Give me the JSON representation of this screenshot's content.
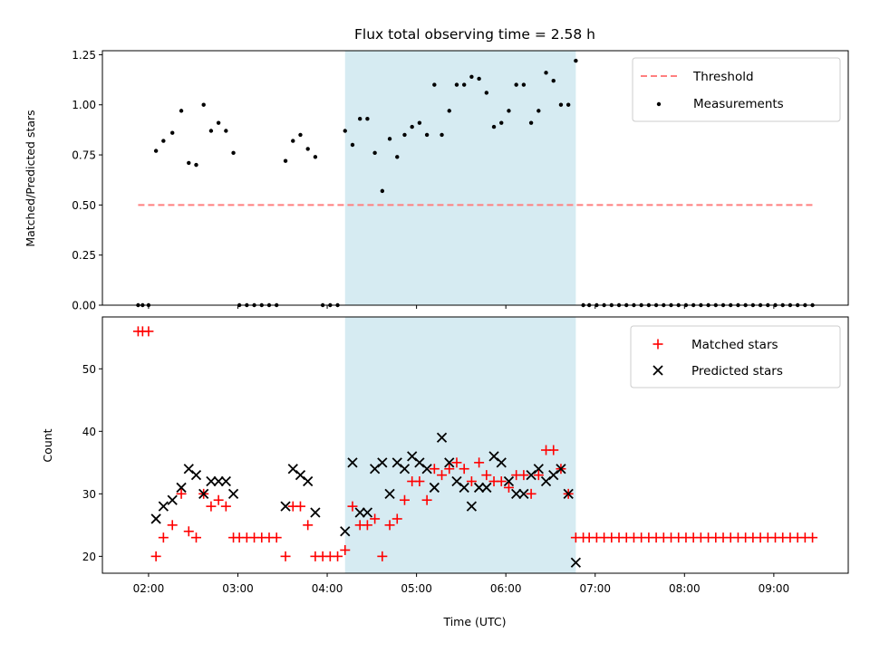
{
  "chart_data": {
    "title": "Flux total observing time = 2.58 h",
    "xlabel": "Time (UTC)",
    "x_tick_labels": [
      "02:00",
      "03:00",
      "04:00",
      "05:00",
      "06:00",
      "07:00",
      "08:00",
      "09:00"
    ],
    "xlim": [
      "01:29",
      "09:50"
    ],
    "observing_window": [
      "04:12",
      "06:47"
    ],
    "colors": {
      "threshold": "#ff7f7f",
      "measurements": "#000000",
      "matched": "#ff0000",
      "predicted": "#000000",
      "window": "#add8e6"
    },
    "panels": [
      {
        "type": "scatter",
        "ylabel": "Matched/Predicted stars",
        "ylim": [
          0,
          1.27
        ],
        "yticks": [
          0,
          0.25,
          0.5,
          0.75,
          1.0,
          1.25
        ],
        "ytick_labels": [
          "0.00",
          "0.25",
          "0.50",
          "0.75",
          "1.00",
          "1.25"
        ],
        "legend_position": "top-right",
        "threshold": {
          "name": "Threshold",
          "value": 0.5,
          "x_range": [
            "01:53",
            "09:27"
          ]
        },
        "series": [
          {
            "name": "Measurements",
            "marker": "dot",
            "points": [
              [
                "01:53",
                0
              ],
              [
                "01:56",
                0
              ],
              [
                "02:00",
                0
              ],
              [
                "02:05",
                0.77
              ],
              [
                "02:10",
                0.82
              ],
              [
                "02:16",
                0.86
              ],
              [
                "02:22",
                0.97
              ],
              [
                "02:27",
                0.71
              ],
              [
                "02:32",
                0.7
              ],
              [
                "02:37",
                1.0
              ],
              [
                "02:42",
                0.87
              ],
              [
                "02:47",
                0.91
              ],
              [
                "02:52",
                0.87
              ],
              [
                "02:57",
                0.76
              ],
              [
                "03:01",
                0
              ],
              [
                "03:06",
                0
              ],
              [
                "03:11",
                0
              ],
              [
                "03:16",
                0
              ],
              [
                "03:21",
                0
              ],
              [
                "03:26",
                0
              ],
              [
                "03:32",
                0.72
              ],
              [
                "03:37",
                0.82
              ],
              [
                "03:42",
                0.85
              ],
              [
                "03:47",
                0.78
              ],
              [
                "03:52",
                0.74
              ],
              [
                "03:57",
                0
              ],
              [
                "04:02",
                0
              ],
              [
                "04:07",
                0
              ],
              [
                "04:12",
                0.87
              ],
              [
                "04:17",
                0.8
              ],
              [
                "04:22",
                0.93
              ],
              [
                "04:27",
                0.93
              ],
              [
                "04:32",
                0.76
              ],
              [
                "04:37",
                0.57
              ],
              [
                "04:42",
                0.83
              ],
              [
                "04:47",
                0.74
              ],
              [
                "04:52",
                0.85
              ],
              [
                "04:57",
                0.89
              ],
              [
                "05:02",
                0.91
              ],
              [
                "05:07",
                0.85
              ],
              [
                "05:12",
                1.1
              ],
              [
                "05:17",
                0.85
              ],
              [
                "05:22",
                0.97
              ],
              [
                "05:27",
                1.1
              ],
              [
                "05:32",
                1.1
              ],
              [
                "05:37",
                1.14
              ],
              [
                "05:42",
                1.13
              ],
              [
                "05:47",
                1.06
              ],
              [
                "05:52",
                0.89
              ],
              [
                "05:57",
                0.91
              ],
              [
                "06:02",
                0.97
              ],
              [
                "06:07",
                1.1
              ],
              [
                "06:12",
                1.1
              ],
              [
                "06:17",
                0.91
              ],
              [
                "06:22",
                0.97
              ],
              [
                "06:27",
                1.16
              ],
              [
                "06:32",
                1.12
              ],
              [
                "06:37",
                1.0
              ],
              [
                "06:42",
                1.0
              ],
              [
                "06:47",
                1.22
              ],
              [
                "06:52",
                0
              ],
              [
                "06:56",
                0
              ],
              [
                "07:01",
                0
              ],
              [
                "07:06",
                0
              ],
              [
                "07:11",
                0
              ],
              [
                "07:16",
                0
              ],
              [
                "07:21",
                0
              ],
              [
                "07:26",
                0
              ],
              [
                "07:31",
                0
              ],
              [
                "07:36",
                0
              ],
              [
                "07:41",
                0
              ],
              [
                "07:46",
                0
              ],
              [
                "07:51",
                0
              ],
              [
                "07:56",
                0
              ],
              [
                "08:01",
                0
              ],
              [
                "08:06",
                0
              ],
              [
                "08:11",
                0
              ],
              [
                "08:16",
                0
              ],
              [
                "08:21",
                0
              ],
              [
                "08:26",
                0
              ],
              [
                "08:31",
                0
              ],
              [
                "08:36",
                0
              ],
              [
                "08:41",
                0
              ],
              [
                "08:46",
                0
              ],
              [
                "08:51",
                0
              ],
              [
                "08:56",
                0
              ],
              [
                "09:01",
                0
              ],
              [
                "09:06",
                0
              ],
              [
                "09:11",
                0
              ],
              [
                "09:16",
                0
              ],
              [
                "09:21",
                0
              ],
              [
                "09:26",
                0
              ]
            ]
          }
        ]
      },
      {
        "type": "scatter",
        "ylabel": "Count",
        "ylim": [
          17.3,
          58.3
        ],
        "yticks": [
          20,
          30,
          40,
          50
        ],
        "ytick_labels": [
          "20",
          "30",
          "40",
          "50"
        ],
        "legend_position": "top-right",
        "series": [
          {
            "name": "Matched stars",
            "marker": "plus",
            "points": [
              [
                "01:53",
                56
              ],
              [
                "01:56",
                56
              ],
              [
                "02:00",
                56
              ],
              [
                "02:05",
                20
              ],
              [
                "02:10",
                23
              ],
              [
                "02:16",
                25
              ],
              [
                "02:22",
                30
              ],
              [
                "02:27",
                24
              ],
              [
                "02:32",
                23
              ],
              [
                "02:37",
                30
              ],
              [
                "02:42",
                28
              ],
              [
                "02:47",
                29
              ],
              [
                "02:52",
                28
              ],
              [
                "02:57",
                23
              ],
              [
                "03:01",
                23
              ],
              [
                "03:06",
                23
              ],
              [
                "03:11",
                23
              ],
              [
                "03:16",
                23
              ],
              [
                "03:21",
                23
              ],
              [
                "03:26",
                23
              ],
              [
                "03:32",
                20
              ],
              [
                "03:37",
                28
              ],
              [
                "03:42",
                28
              ],
              [
                "03:47",
                25
              ],
              [
                "03:52",
                20
              ],
              [
                "03:57",
                20
              ],
              [
                "04:02",
                20
              ],
              [
                "04:07",
                20
              ],
              [
                "04:12",
                21
              ],
              [
                "04:17",
                28
              ],
              [
                "04:22",
                25
              ],
              [
                "04:27",
                25
              ],
              [
                "04:32",
                26
              ],
              [
                "04:37",
                20
              ],
              [
                "04:42",
                25
              ],
              [
                "04:47",
                26
              ],
              [
                "04:52",
                29
              ],
              [
                "04:57",
                32
              ],
              [
                "05:02",
                32
              ],
              [
                "05:07",
                29
              ],
              [
                "05:12",
                34
              ],
              [
                "05:17",
                33
              ],
              [
                "05:22",
                34
              ],
              [
                "05:27",
                35
              ],
              [
                "05:32",
                34
              ],
              [
                "05:37",
                32
              ],
              [
                "05:42",
                35
              ],
              [
                "05:47",
                33
              ],
              [
                "05:52",
                32
              ],
              [
                "05:57",
                32
              ],
              [
                "06:02",
                31
              ],
              [
                "06:07",
                33
              ],
              [
                "06:12",
                33
              ],
              [
                "06:17",
                30
              ],
              [
                "06:22",
                33
              ],
              [
                "06:27",
                37
              ],
              [
                "06:32",
                37
              ],
              [
                "06:37",
                34
              ],
              [
                "06:42",
                30
              ],
              [
                "06:47",
                23
              ],
              [
                "06:52",
                23
              ],
              [
                "06:56",
                23
              ],
              [
                "07:01",
                23
              ],
              [
                "07:06",
                23
              ],
              [
                "07:11",
                23
              ],
              [
                "07:16",
                23
              ],
              [
                "07:21",
                23
              ],
              [
                "07:26",
                23
              ],
              [
                "07:31",
                23
              ],
              [
                "07:36",
                23
              ],
              [
                "07:41",
                23
              ],
              [
                "07:46",
                23
              ],
              [
                "07:51",
                23
              ],
              [
                "07:56",
                23
              ],
              [
                "08:01",
                23
              ],
              [
                "08:06",
                23
              ],
              [
                "08:11",
                23
              ],
              [
                "08:16",
                23
              ],
              [
                "08:21",
                23
              ],
              [
                "08:26",
                23
              ],
              [
                "08:31",
                23
              ],
              [
                "08:36",
                23
              ],
              [
                "08:41",
                23
              ],
              [
                "08:46",
                23
              ],
              [
                "08:51",
                23
              ],
              [
                "08:56",
                23
              ],
              [
                "09:01",
                23
              ],
              [
                "09:06",
                23
              ],
              [
                "09:11",
                23
              ],
              [
                "09:16",
                23
              ],
              [
                "09:21",
                23
              ],
              [
                "09:26",
                23
              ]
            ]
          },
          {
            "name": "Predicted stars",
            "marker": "x",
            "points": [
              [
                "02:05",
                26
              ],
              [
                "02:10",
                28
              ],
              [
                "02:16",
                29
              ],
              [
                "02:22",
                31
              ],
              [
                "02:27",
                34
              ],
              [
                "02:32",
                33
              ],
              [
                "02:37",
                30
              ],
              [
                "02:42",
                32
              ],
              [
                "02:47",
                32
              ],
              [
                "02:52",
                32
              ],
              [
                "02:57",
                30
              ],
              [
                "03:32",
                28
              ],
              [
                "03:37",
                34
              ],
              [
                "03:42",
                33
              ],
              [
                "03:47",
                32
              ],
              [
                "03:52",
                27
              ],
              [
                "04:12",
                24
              ],
              [
                "04:17",
                35
              ],
              [
                "04:22",
                27
              ],
              [
                "04:27",
                27
              ],
              [
                "04:32",
                34
              ],
              [
                "04:37",
                35
              ],
              [
                "04:42",
                30
              ],
              [
                "04:47",
                35
              ],
              [
                "04:52",
                34
              ],
              [
                "04:57",
                36
              ],
              [
                "05:02",
                35
              ],
              [
                "05:07",
                34
              ],
              [
                "05:12",
                31
              ],
              [
                "05:17",
                39
              ],
              [
                "05:22",
                35
              ],
              [
                "05:27",
                32
              ],
              [
                "05:32",
                31
              ],
              [
                "05:37",
                28
              ],
              [
                "05:42",
                31
              ],
              [
                "05:47",
                31
              ],
              [
                "05:52",
                36
              ],
              [
                "05:57",
                35
              ],
              [
                "06:02",
                32
              ],
              [
                "06:07",
                30
              ],
              [
                "06:12",
                30
              ],
              [
                "06:17",
                33
              ],
              [
                "06:22",
                34
              ],
              [
                "06:27",
                32
              ],
              [
                "06:32",
                33
              ],
              [
                "06:37",
                34
              ],
              [
                "06:42",
                30
              ],
              [
                "06:47",
                19
              ]
            ]
          }
        ]
      }
    ]
  }
}
